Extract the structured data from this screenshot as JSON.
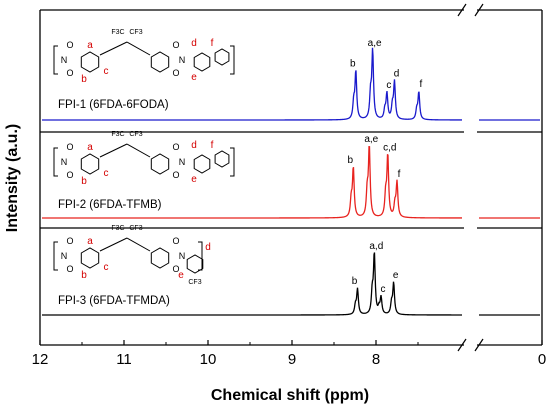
{
  "chart_data": {
    "type": "line",
    "title": "",
    "xlabel": "Chemical shift (ppm)",
    "ylabel": "Intensity (a.u.)",
    "xlim": [
      12,
      0
    ],
    "axis_break_after": 6.8,
    "x_ticks": [
      12,
      11,
      10,
      9,
      8,
      0
    ],
    "series": [
      {
        "name": "FPI-1 (6FDA-6FODA)",
        "color": "#1a1acc",
        "peaks": [
          {
            "label": "b",
            "x": 8.24,
            "height": 0.7
          },
          {
            "label": "a,e",
            "x": 8.04,
            "height": 1.0
          },
          {
            "label": "c",
            "x": 7.87,
            "height": 0.38
          },
          {
            "label": "d",
            "x": 7.78,
            "height": 0.55
          },
          {
            "label": "f",
            "x": 7.49,
            "height": 0.4
          }
        ]
      },
      {
        "name": "FPI-2 (6FDA-TFMB)",
        "color": "#e8231f",
        "peaks": [
          {
            "label": "b",
            "x": 8.27,
            "height": 0.7
          },
          {
            "label": "a,e",
            "x": 8.08,
            "height": 1.0
          },
          {
            "label": "c,d",
            "x": 7.86,
            "height": 0.88
          },
          {
            "label": "f",
            "x": 7.75,
            "height": 0.5
          }
        ]
      },
      {
        "name": "FPI-3 (6FDA-TFMDA)",
        "color": "#000000",
        "peaks": [
          {
            "label": "b",
            "x": 8.22,
            "height": 0.42
          },
          {
            "label": "a,d",
            "x": 8.02,
            "height": 1.0
          },
          {
            "label": "c",
            "x": 7.94,
            "height": 0.28
          },
          {
            "label": "e",
            "x": 7.79,
            "height": 0.52
          }
        ]
      }
    ]
  },
  "structures": [
    {
      "labels": {
        "a": "a",
        "b": "b",
        "c": "c",
        "d": "d",
        "e": "e",
        "f": "f"
      },
      "substituents": [
        "F3C",
        "CF3",
        "F3C",
        "CF3"
      ],
      "heteroatoms": [
        "O",
        "O",
        "O",
        "O",
        "N",
        "N",
        "O"
      ]
    },
    {
      "labels": {
        "a": "a",
        "b": "b",
        "c": "c",
        "d": "d",
        "e": "e",
        "f": "f"
      },
      "substituents": [
        "F3C",
        "CF3",
        "F3C",
        "CF3"
      ],
      "heteroatoms": [
        "O",
        "O",
        "O",
        "O",
        "N",
        "N"
      ]
    },
    {
      "labels": {
        "a": "a",
        "b": "b",
        "c": "c",
        "d": "d",
        "e": "e"
      },
      "substituents": [
        "F3C",
        "CF3",
        "CF3"
      ],
      "heteroatoms": [
        "O",
        "O",
        "O",
        "O",
        "N",
        "N"
      ]
    }
  ]
}
